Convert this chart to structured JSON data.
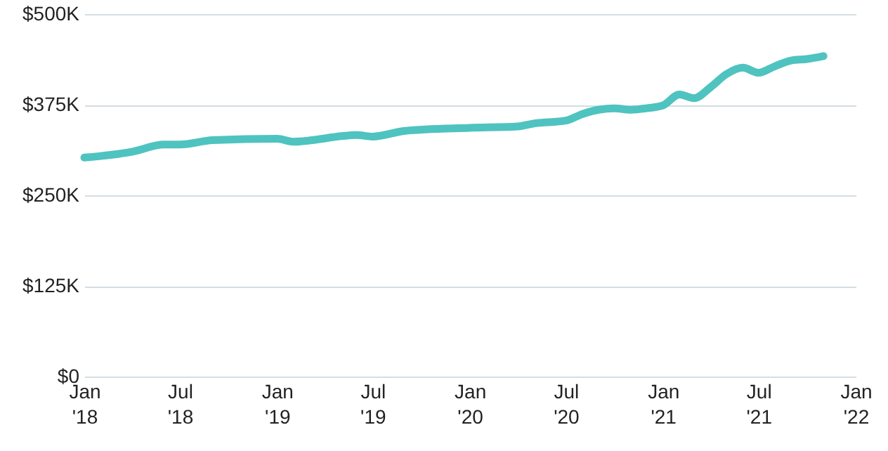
{
  "chart_data": {
    "type": "line",
    "x": [
      "2018-01",
      "2018-04",
      "2018-06",
      "2018-07",
      "2018-09",
      "2019-01",
      "2019-02",
      "2019-06",
      "2019-07",
      "2019-09",
      "2020-01",
      "2020-04",
      "2020-05",
      "2020-07",
      "2020-08",
      "2020-09",
      "2020-10",
      "2020-11",
      "2020-12",
      "2021-01",
      "2021-02",
      "2021-03",
      "2021-04",
      "2021-05",
      "2021-06",
      "2021-07",
      "2021-08",
      "2021-09",
      "2021-10",
      "2021-11"
    ],
    "series": [
      {
        "color": "#4fc3bf",
        "values": [
          302,
          310,
          320,
          320,
          326,
          328,
          324,
          333,
          331,
          339,
          343,
          345,
          349,
          353,
          362,
          368,
          370,
          368,
          370,
          374,
          389,
          384,
          399,
          417,
          426,
          419,
          428,
          436,
          438,
          442
        ]
      }
    ],
    "ylim": [
      0,
      500
    ],
    "yticks": [
      {
        "value": 0,
        "label": "$0"
      },
      {
        "value": 125,
        "label": "$125K"
      },
      {
        "value": 250,
        "label": "$250K"
      },
      {
        "value": 375,
        "label": "$375K"
      },
      {
        "value": 500,
        "label": "$500K"
      }
    ],
    "xlim": [
      "2018-01",
      "2022-01"
    ],
    "xticks": [
      {
        "value": "2018-01",
        "label": "Jan '18"
      },
      {
        "value": "2018-07",
        "label": "Jul '18"
      },
      {
        "value": "2019-01",
        "label": "Jan '19"
      },
      {
        "value": "2019-07",
        "label": "Jul '19"
      },
      {
        "value": "2020-01",
        "label": "Jan '20"
      },
      {
        "value": "2020-07",
        "label": "Jul '20"
      },
      {
        "value": "2021-01",
        "label": "Jan '21"
      },
      {
        "value": "2021-07",
        "label": "Jul '21"
      },
      {
        "value": "2022-01",
        "label": "Jan '22"
      }
    ],
    "grid": "y",
    "marker": "none",
    "line_style": "solid"
  }
}
